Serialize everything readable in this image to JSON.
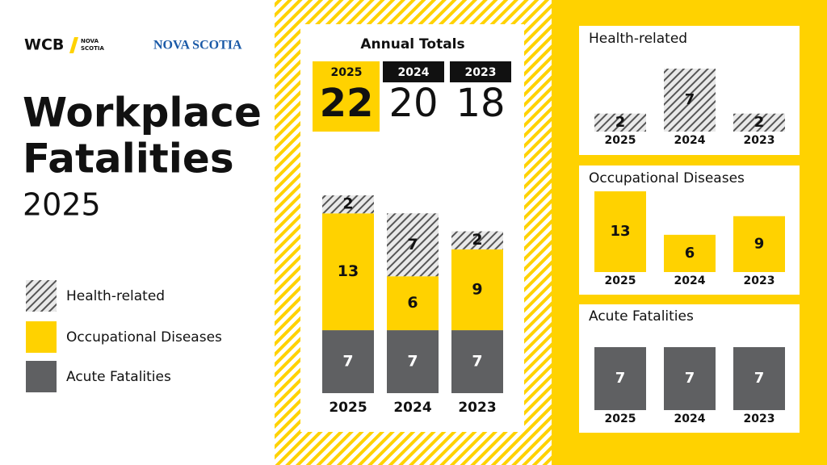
{
  "logos": [
    {
      "text": "WCB",
      "sub": [
        "NOVA",
        "SCOTIA"
      ]
    },
    {
      "text": "NOVA SCOTIA"
    }
  ],
  "title": [
    "Workplace",
    "Fatalities"
  ],
  "subtitle": "2025",
  "annual_totals": {
    "title": "Annual Totals",
    "years": [
      "2025",
      "2024",
      "2023"
    ],
    "values": [
      22,
      20,
      18
    ]
  },
  "chart_data": [
    {
      "type": "stacked_bar",
      "categories": [
        "2025",
        "2024",
        "2023"
      ],
      "series": [
        {
          "name": "Acute Fatalities",
          "color": "#5f6062",
          "values": [
            7,
            7,
            7
          ]
        },
        {
          "name": "Occupational Diseases",
          "color": "#ffd200",
          "values": [
            13,
            6,
            9
          ]
        },
        {
          "name": "Health-related",
          "color": "#555555",
          "pattern": "hatch",
          "values": [
            2,
            7,
            2
          ]
        }
      ],
      "ylim": [
        0,
        22
      ]
    },
    {
      "type": "bar",
      "title": "Health-related",
      "categories": [
        "2025",
        "2024",
        "2023"
      ],
      "values": [
        2,
        7,
        2
      ],
      "color": "#555555",
      "pattern": "hatch",
      "ylim": [
        0,
        7
      ]
    },
    {
      "type": "bar",
      "title": "Occupational Diseases",
      "categories": [
        "2025",
        "2024",
        "2023"
      ],
      "values": [
        13,
        6,
        9
      ],
      "color": "#ffd200",
      "ylim": [
        0,
        13
      ]
    },
    {
      "type": "bar",
      "title": "Acute Fatalities",
      "categories": [
        "2025",
        "2024",
        "2023"
      ],
      "values": [
        7,
        7,
        7
      ],
      "color": "#5f6062",
      "ylim": [
        0,
        7
      ]
    }
  ]
}
